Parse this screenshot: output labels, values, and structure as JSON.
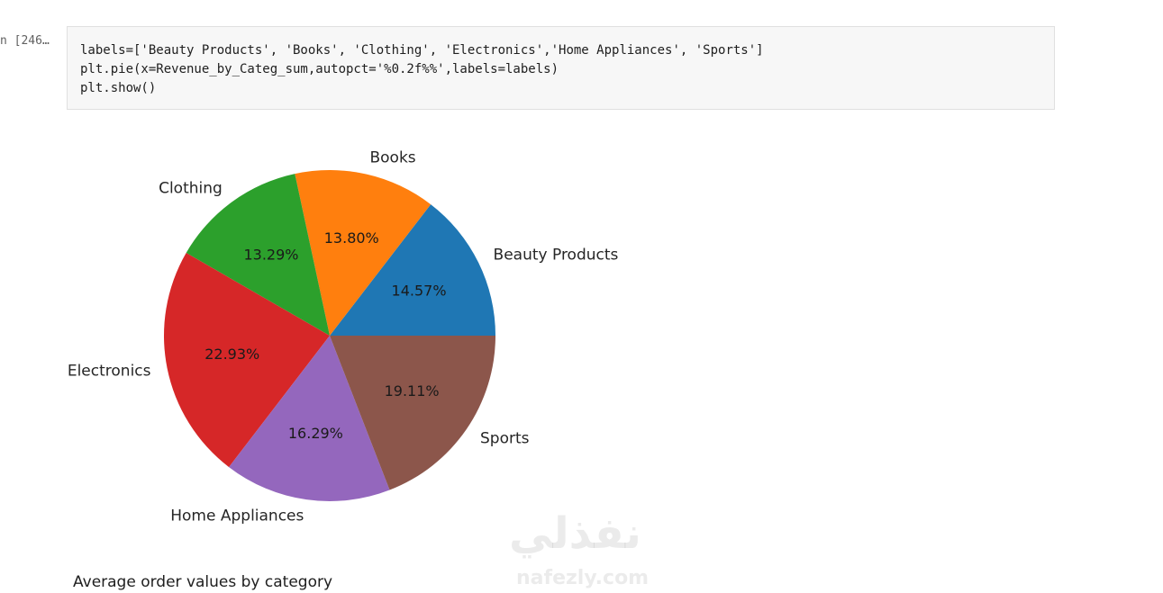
{
  "cell": {
    "prompt": "n [246…",
    "code": [
      "labels=['Beauty Products', 'Books', 'Clothing', 'Electronics','Home Appliances', 'Sports']",
      "plt.pie(x=Revenue_by_Categ_sum,autopct='%0.2f%%',labels=labels)",
      "plt.show()"
    ]
  },
  "chart_data": {
    "type": "pie",
    "categories": [
      "Beauty Products",
      "Books",
      "Clothing",
      "Electronics",
      "Home Appliances",
      "Sports"
    ],
    "values": [
      14.57,
      13.8,
      13.29,
      22.93,
      16.29,
      19.11
    ],
    "value_labels": [
      "14.57%",
      "13.80%",
      "13.29%",
      "22.93%",
      "16.29%",
      "19.11%"
    ],
    "colors": [
      "#1f77b4",
      "#ff7f0e",
      "#2ca02c",
      "#d62728",
      "#9467bd",
      "#8c564b"
    ]
  },
  "markdown": "Average order values by category",
  "watermark": {
    "arabic": "نفذلي",
    "latin": "nafezly.com"
  }
}
